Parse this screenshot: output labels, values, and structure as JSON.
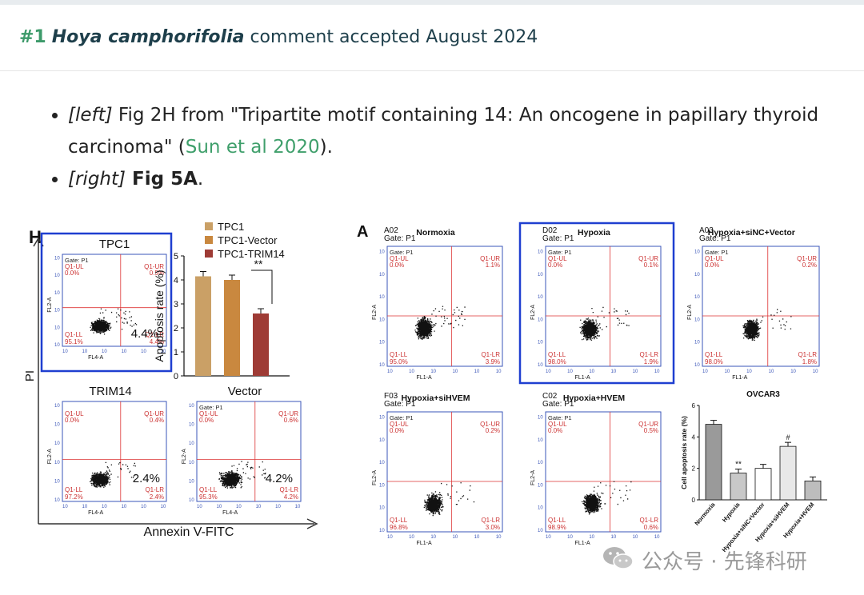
{
  "header": {
    "num": "#1",
    "species": "Hoya camphorifolia",
    "text": " comment accepted August 2024"
  },
  "notes": [
    {
      "tag": "[left]",
      "pre": " Fig 2H from \"Tripartite motif containing 14: An oncogene in papillary thyroid carcinoma\" (",
      "link": "Sun et al 2020",
      "post": ")."
    },
    {
      "tag": "[right]",
      "bold": " Fig 5A",
      "post": "."
    }
  ],
  "figH": {
    "label": "H",
    "yaxis": "PI",
    "xaxis": "Annexin V-FITC",
    "panels": [
      {
        "title": "TPC1",
        "pct": "4.4%",
        "ul": "Q1-UL",
        "ulv": "0.0%",
        "ur": "Q1-UR",
        "urv": "0.5%",
        "ll": "Q1-LL",
        "llv": "95.1%",
        "lr": "Q1-LR",
        "lrv": "4.4%",
        "gate": "Gate: P1",
        "fl2": "FL2-A",
        "fl4": "FL4-A"
      },
      {
        "title": "TRIM14",
        "pct": "2.4%",
        "ul": "Q1-UL",
        "ulv": "0.0%",
        "ur": "Q1-UR",
        "urv": "0.4%",
        "ll": "Q1-LL",
        "llv": "97.2%",
        "lr": "Q1-LR",
        "lrv": "2.4%",
        "gate": "",
        "fl2": "FL2-A",
        "fl4": "FL4-A"
      },
      {
        "title": "Vector",
        "pct": "4.2%",
        "ul": "Q1-UL",
        "ulv": "0.0%",
        "ur": "Q1-UR",
        "urv": "0.6%",
        "ll": "Q1-LL",
        "llv": "95.3%",
        "lr": "Q1-LR",
        "lrv": "4.2%",
        "gate": "Gate: P1",
        "fl2": "FL2-A",
        "fl4": "FL4-A"
      }
    ],
    "legend": [
      "TPC1",
      "TPC1-Vector",
      "TPC1-TRIM14"
    ],
    "sig": "**"
  },
  "figA": {
    "label": "A",
    "panels": [
      {
        "id": "A02",
        "title": "Normoxia",
        "gate": "Gate: P1",
        "ul": "Q1-UL",
        "ulv": "0.0%",
        "ur": "Q1-UR",
        "urv": "1.1%",
        "ll": "Q1-LL",
        "llv": "95.0%",
        "lr": "Q1-LR",
        "lrv": "3.9%",
        "fl1": "FL1-A",
        "fl2": "FL2-A"
      },
      {
        "id": "D02",
        "title": "Hypoxia",
        "gate": "Gate: P1",
        "ul": "Q1-UL",
        "ulv": "0.0%",
        "ur": "Q1-UR",
        "urv": "0.1%",
        "ll": "Q1-LL",
        "llv": "98.0%",
        "lr": "Q1-LR",
        "lrv": "1.9%",
        "fl1": "FL1-A",
        "fl2": "FL2-A"
      },
      {
        "id": "A03",
        "title": "Hypoxia+siNC+Vector",
        "gate": "Gate: P1",
        "ul": "Q1-UL",
        "ulv": "0.0%",
        "ur": "Q1-UR",
        "urv": "0.2%",
        "ll": "Q1-LL",
        "llv": "98.0%",
        "lr": "Q1-LR",
        "lrv": "1.8%",
        "fl1": "FL1-A",
        "fl2": "FL2-A"
      },
      {
        "id": "F03",
        "title": "Hypoxia+siHVEM",
        "gate": "Gate: P1",
        "ul": "Q1-UL",
        "ulv": "0.0%",
        "ur": "Q1-UR",
        "urv": "0.2%",
        "ll": "Q1-LL",
        "llv": "96.8%",
        "lr": "Q1-LR",
        "lrv": "3.0%",
        "fl1": "FL1-A",
        "fl2": "FL2-A"
      },
      {
        "id": "C02",
        "title": "Hypoxia+HVEM",
        "gate": "Gate: P1",
        "ul": "Q1-UL",
        "ulv": "0.0%",
        "ur": "Q1-UR",
        "urv": "0.5%",
        "ll": "Q1-LL",
        "llv": "98.9%",
        "lr": "Q1-LR",
        "lrv": "0.6%",
        "fl1": "FL1-A",
        "fl2": "FL2-A"
      }
    ],
    "bar_title": "OVCAR3",
    "bar_ylabel": "Cell apoptosis rate (%)",
    "bar_sig1": "**",
    "bar_sig2": "#"
  },
  "chart_data": [
    {
      "type": "bar",
      "ylabel": "Apoptosis rate (%)",
      "categories": [
        "TPC1",
        "TPC1-Vector",
        "TPC1-TRIM14"
      ],
      "values": [
        4.15,
        4.0,
        2.6
      ],
      "colors": [
        "#caa066",
        "#c9883f",
        "#9e3b35"
      ],
      "ylim": [
        0,
        5
      ],
      "yticks": [
        "0",
        "1",
        "2",
        "3",
        "4",
        "5"
      ],
      "annotation": "**"
    },
    {
      "type": "bar",
      "title": "OVCAR3",
      "ylabel": "Cell apoptosis rate (%)",
      "categories": [
        "Normoxia",
        "Hypoxia",
        "Hypoxia+siNC+Vector",
        "Hypoxia+siHVEM",
        "Hypoxia+HVEM"
      ],
      "values": [
        4.8,
        1.7,
        2.0,
        3.4,
        1.2
      ],
      "ylim": [
        0,
        6
      ],
      "yticks": [
        "0",
        "2",
        "4",
        "6"
      ]
    }
  ],
  "watermark": "公众号 · 先锋科研"
}
